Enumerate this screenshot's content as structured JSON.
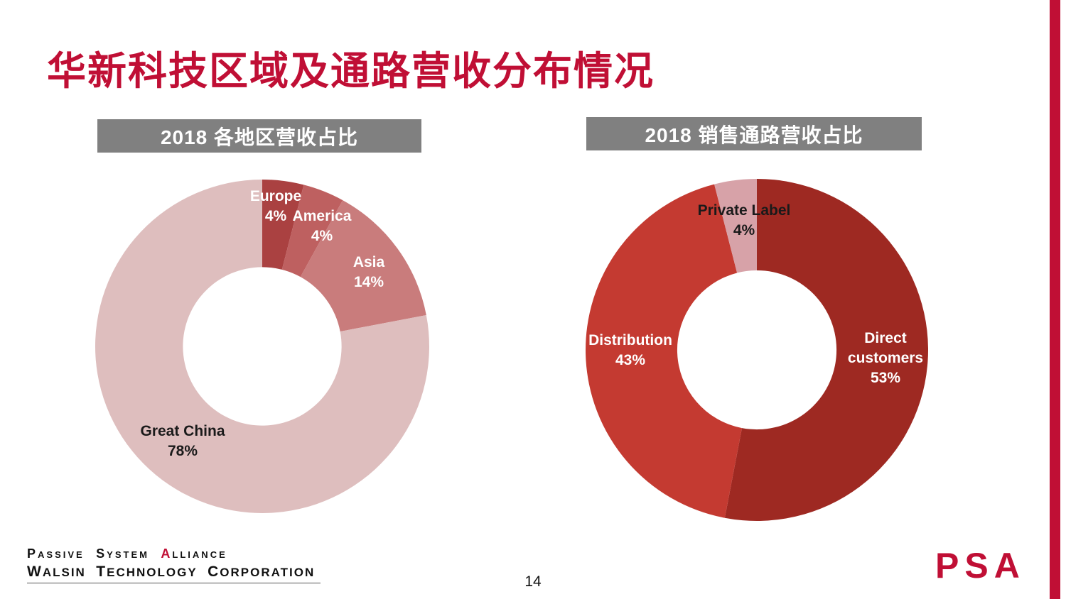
{
  "slide": {
    "title": "华新科技区域及通路营收分布情况",
    "page_number": "14",
    "brand_color": "#C00F35",
    "header_bg": "#808080",
    "footer_logo": {
      "line1_words": [
        "Passive",
        "System",
        "Alliance"
      ],
      "line2_words": [
        "Walsin",
        "Technology",
        "Corporation"
      ],
      "psa_text": "PSA"
    }
  },
  "chart_data": [
    {
      "type": "pie",
      "variant": "donut",
      "title": "2018 各地区营收占比",
      "legend_position": "none",
      "start_angle_deg": 0,
      "direction": "clockwise",
      "inner_radius_ratio": 0.475,
      "labels": [
        "Europe",
        "America",
        "Asia",
        "Great China"
      ],
      "values": [
        4,
        4,
        14,
        78
      ],
      "pct_labels": [
        "4%",
        "4%",
        "14%",
        "78%"
      ],
      "colors": [
        "#AA4141",
        "#BE6060",
        "#C97C7C",
        "#DEBEBE"
      ],
      "label_colors": [
        "#FFFFFF",
        "#FFFFFF",
        "#FFFFFF",
        "#1A1A1A"
      ]
    },
    {
      "type": "pie",
      "variant": "donut",
      "title": "2018 销售通路营收占比",
      "legend_position": "none",
      "start_angle_deg": 0,
      "direction": "clockwise",
      "inner_radius_ratio": 0.465,
      "labels": [
        "Direct customers",
        "Distribution",
        "Private Label"
      ],
      "values": [
        53,
        43,
        4
      ],
      "pct_labels": [
        "53%",
        "43%",
        "4%"
      ],
      "colors": [
        "#9E2922",
        "#C43A31",
        "#D7A2A8"
      ],
      "label_colors": [
        "#FFFFFF",
        "#FFFFFF",
        "#1A1A1A"
      ]
    }
  ]
}
